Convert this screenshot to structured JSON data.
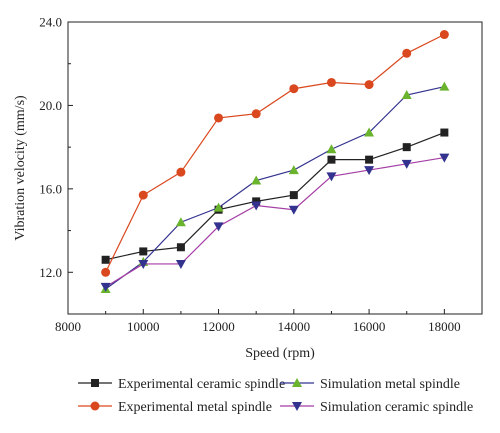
{
  "chart_data": {
    "type": "line",
    "title": "",
    "xlabel": "Speed (rpm)",
    "ylabel": "Vibration velocity (mm/s)",
    "xlim": [
      8000,
      19000
    ],
    "ylim": [
      10.0,
      24.0
    ],
    "xticks": [
      8000,
      10000,
      12000,
      14000,
      16000,
      18000
    ],
    "yticks": [
      12.0,
      16.0,
      20.0,
      24.0
    ],
    "xtick_labels": [
      "8000",
      "10000",
      "12000",
      "14000",
      "16000",
      "18000"
    ],
    "ytick_labels": [
      "12.0",
      "16.0",
      "20.0",
      "24.0"
    ],
    "grid": false,
    "legend_position": "bottom",
    "x": [
      9000,
      10000,
      11000,
      12000,
      13000,
      14000,
      15000,
      16000,
      17000,
      18000
    ],
    "series": [
      {
        "name": "Experimental ceramic spindle",
        "marker": "square",
        "line_color": "#222222",
        "marker_color": "#222222",
        "values": [
          12.6,
          13.0,
          13.2,
          15.0,
          15.4,
          15.7,
          17.4,
          17.4,
          18.0,
          18.7
        ]
      },
      {
        "name": "Experimental metal spindle",
        "marker": "circle",
        "line_color": "#d9481e",
        "marker_color": "#d9481e",
        "values": [
          12.0,
          15.7,
          16.8,
          19.4,
          19.6,
          20.8,
          21.1,
          21.0,
          22.5,
          23.4
        ]
      },
      {
        "name": "Simulation metal spindle",
        "marker": "triangle-up",
        "line_color": "#33338f",
        "marker_color": "#6ab42d",
        "values": [
          11.2,
          12.5,
          14.4,
          15.1,
          16.4,
          16.9,
          17.9,
          18.7,
          20.5,
          20.9
        ]
      },
      {
        "name": "Simulation ceramic spindle",
        "marker": "triangle-down",
        "line_color": "#a53ea5",
        "marker_color": "#33338f",
        "values": [
          11.3,
          12.4,
          12.4,
          14.2,
          15.2,
          15.0,
          16.6,
          16.9,
          17.2,
          17.5
        ]
      }
    ]
  }
}
